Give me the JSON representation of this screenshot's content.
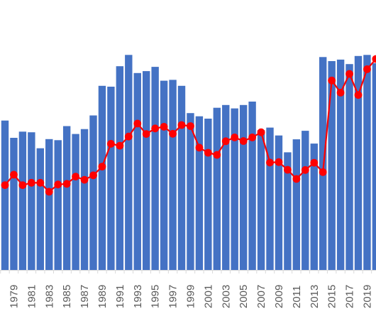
{
  "chart_data": {
    "type": "bar+line",
    "title": "",
    "xlabel": "",
    "ylabel": "",
    "grid": false,
    "legend": "none",
    "colors": {
      "bar": "#4472c4",
      "line": "#ff0000",
      "axis": "#d9d9d9",
      "text": "#595959"
    },
    "years": [
      1978,
      1979,
      1980,
      1981,
      1982,
      1983,
      1984,
      1985,
      1986,
      1987,
      1988,
      1989,
      1990,
      1991,
      1992,
      1993,
      1994,
      1995,
      1996,
      1997,
      1998,
      1999,
      2000,
      2001,
      2002,
      2003,
      2004,
      2005,
      2006,
      2007,
      2008,
      2009,
      2010,
      2011,
      2012,
      2013,
      2014,
      2015,
      2016,
      2017,
      2018,
      2019,
      2020
    ],
    "x_tick_labels": [
      "1979",
      "1981",
      "1983",
      "1985",
      "1987",
      "1989",
      "1991",
      "1993",
      "1995",
      "1997",
      "1999",
      "2001",
      "2003",
      "2005",
      "2007",
      "2009",
      "2011",
      "2013",
      "2015",
      "2017",
      "2019"
    ],
    "ylim": [
      0,
      100
    ],
    "series": [
      {
        "type": "bar",
        "values": [
          70.1,
          62.0,
          64.9,
          64.6,
          57.1,
          61.4,
          60.9,
          67.5,
          63.8,
          66.1,
          72.5,
          86.4,
          86.0,
          95.6,
          100.9,
          92.4,
          93.3,
          95.3,
          88.8,
          89.2,
          86.4,
          73.6,
          72.1,
          71.0,
          76.1,
          77.4,
          75.8,
          77.4,
          79.0,
          65.6,
          66.8,
          63.1,
          55.2,
          61.3,
          65.3,
          59.3,
          99.9,
          98.0,
          98.7,
          96.6,
          100.4,
          100.9,
          97.0
        ]
      },
      {
        "type": "line",
        "values": [
          39.8,
          44.7,
          39.8,
          40.9,
          40.9,
          36.7,
          40.1,
          40.4,
          43.8,
          42.3,
          44.4,
          48.5,
          59.2,
          58.3,
          62.6,
          68.7,
          63.8,
          66.4,
          67.2,
          63.9,
          68.0,
          67.5,
          57.4,
          55.0,
          54.0,
          60.4,
          62.2,
          60.5,
          62.2,
          64.6,
          50.4,
          50.6,
          47.0,
          42.7,
          46.9,
          50.3,
          45.9,
          88.9,
          83.2,
          92.0,
          82.1,
          94.2,
          99.0
        ]
      }
    ]
  }
}
